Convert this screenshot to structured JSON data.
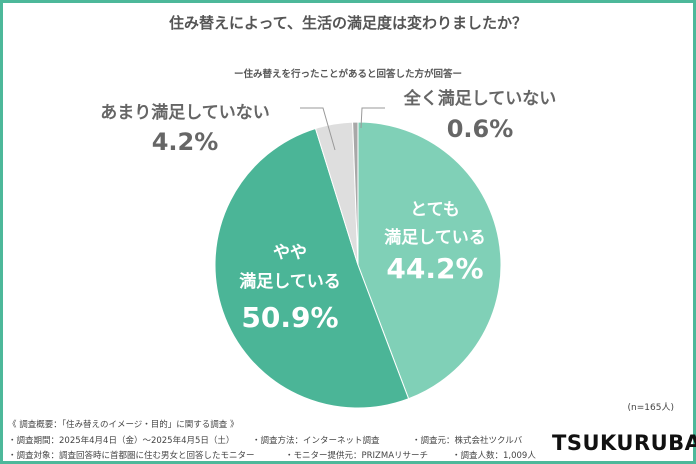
{
  "title": "住み替えによって、生活の満足度は変わりましたか？",
  "subtitle": "ー住み替えを行ったことがあると回答した方が回答ー",
  "n_label": "(n=165人)",
  "colors": {
    "frame": "#4db89a",
    "very": "#80d0b7",
    "somewhat": "#4bb597",
    "not_much": "#dedede",
    "not_at_all": "#a8a8a8"
  },
  "chart_data": {
    "type": "pie",
    "start": "top",
    "direction": "clockwise",
    "slices": [
      {
        "label_lines": [
          "とても",
          "満足している"
        ],
        "value": 44.2,
        "value_label": "44.2%",
        "color": "#80d0b7"
      },
      {
        "label_lines": [
          "やや",
          "満足している"
        ],
        "value": 50.9,
        "value_label": "50.9%",
        "color": "#4bb597"
      },
      {
        "label_lines": [
          "あまり満足していない"
        ],
        "value": 4.2,
        "value_label": "4.2%",
        "color": "#dedede"
      },
      {
        "label_lines": [
          "全く満足していない"
        ],
        "value": 0.6,
        "value_label": "0.6%",
        "color": "#a8a8a8"
      }
    ]
  },
  "footer": {
    "heading": "《 調査概要：「住み替えのイメージ・目的」に関する調査 》",
    "period": "・調査期間：2025年4月4日（金）～2025年4月5日（土）",
    "method": "・調査方法：インターネット調査",
    "source": "・調査元：株式会社ツクルバ",
    "target": "・調査対象：調査回答時に首都圏に住む男女と回答したモニター",
    "provider": "・モニター提供元：PRIZMAリサーチ",
    "count": "・調査人数：1,009人"
  },
  "logo": "TSUKURUBA"
}
